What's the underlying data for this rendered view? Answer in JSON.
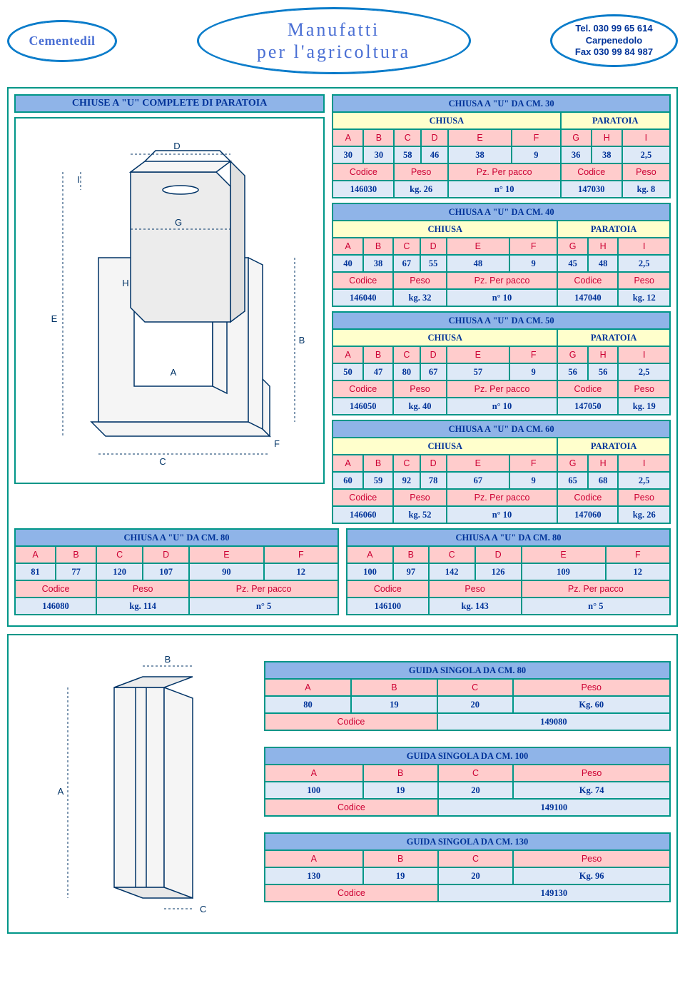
{
  "header": {
    "logo": "Cementedil",
    "title_line1": "Manufatti",
    "title_line2": "per l'agricoltura",
    "contact_tel": "Tel. 030 99 65 614",
    "contact_city": "Carpenedolo",
    "contact_fax": "Fax 030 99 84 987"
  },
  "diagram_title": "CHIUSE A \"U\" COMPLETE DI PARATOIA",
  "table_labels": {
    "chiusa": "CHIUSA",
    "paratoia": "PARATOIA",
    "A": "A",
    "B": "B",
    "C": "C",
    "D": "D",
    "E": "E",
    "F": "F",
    "G": "G",
    "H": "H",
    "I": "I",
    "codice": "Codice",
    "peso": "Peso",
    "pz": "Pz. Per pacco"
  },
  "chiuse": [
    {
      "title": "CHIUSA A \"U\" DA CM. 30",
      "dims": [
        "30",
        "30",
        "58",
        "46",
        "38",
        "9",
        "36",
        "38",
        "2,5"
      ],
      "chiusa_cod": "146030",
      "chiusa_peso": "kg. 26",
      "chiusa_pz": "n° 10",
      "par_cod": "147030",
      "par_peso": "kg. 8"
    },
    {
      "title": "CHIUSA A \"U\" DA CM. 40",
      "dims": [
        "40",
        "38",
        "67",
        "55",
        "48",
        "9",
        "45",
        "48",
        "2,5"
      ],
      "chiusa_cod": "146040",
      "chiusa_peso": "kg. 32",
      "chiusa_pz": "n° 10",
      "par_cod": "147040",
      "par_peso": "kg. 12"
    },
    {
      "title": "CHIUSA A \"U\" DA CM. 50",
      "dims": [
        "50",
        "47",
        "80",
        "67",
        "57",
        "9",
        "56",
        "56",
        "2,5"
      ],
      "chiusa_cod": "146050",
      "chiusa_peso": "kg. 40",
      "chiusa_pz": "n° 10",
      "par_cod": "147050",
      "par_peso": "kg. 19"
    },
    {
      "title": "CHIUSA A \"U\" DA CM. 60",
      "dims": [
        "60",
        "59",
        "92",
        "78",
        "67",
        "9",
        "65",
        "68",
        "2,5"
      ],
      "chiusa_cod": "146060",
      "chiusa_peso": "kg. 52",
      "chiusa_pz": "n° 10",
      "par_cod": "147060",
      "par_peso": "kg. 26"
    }
  ],
  "chiuse80": [
    {
      "title": "CHIUSA A \"U\" DA CM. 80",
      "dims": [
        "81",
        "77",
        "120",
        "107",
        "90",
        "12"
      ],
      "cod": "146080",
      "peso": "kg. 114",
      "pz": "n° 5"
    },
    {
      "title": "CHIUSA A \"U\" DA CM. 80",
      "dims": [
        "100",
        "97",
        "142",
        "126",
        "109",
        "12"
      ],
      "cod": "146100",
      "peso": "kg. 143",
      "pz": "n° 5"
    }
  ],
  "guide": [
    {
      "title": "GUIDA SINGOLA DA CM. 80",
      "A": "80",
      "B": "19",
      "C": "20",
      "peso": "Kg. 60",
      "cod": "149080"
    },
    {
      "title": "GUIDA SINGOLA DA CM. 100",
      "A": "100",
      "B": "19",
      "C": "20",
      "peso": "Kg. 74",
      "cod": "149100"
    },
    {
      "title": "GUIDA SINGOLA DA CM. 130",
      "A": "130",
      "B": "19",
      "C": "20",
      "peso": "Kg. 96",
      "cod": "149130"
    }
  ],
  "dim_labels": {
    "A": "A",
    "B": "B",
    "C": "C",
    "D": "D",
    "E": "E",
    "F": "F",
    "G": "G",
    "H": "H",
    "I": "I"
  }
}
